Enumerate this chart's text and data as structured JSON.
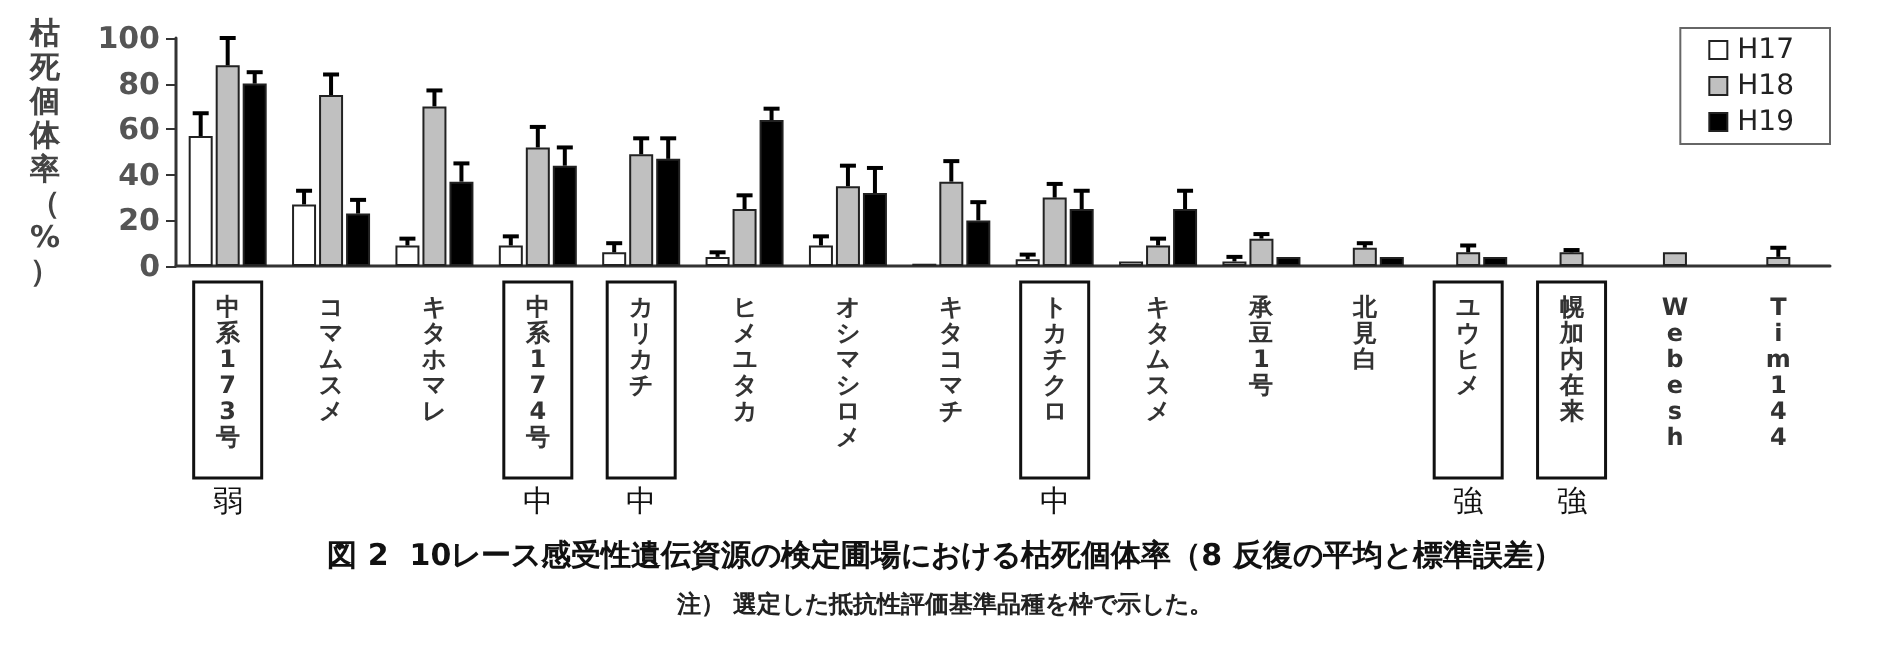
{
  "chart_data": {
    "type": "bar",
    "title": "図 2  10レース感受性遺伝資源の検定圃場における枯死個体率（8 反復の平均と標準誤差）",
    "ylabel": "枯死個体率（%）",
    "categories": [
      "中系173号",
      "コマムスメ",
      "キタホマレ",
      "中系174号",
      "カリカチ",
      "ヒメユタカ",
      "オシマシロメ",
      "キタコマチ",
      "トカチクロ",
      "キタムスメ",
      "承豆1号",
      "北見白",
      "ユウヒメ",
      "幌加内在来",
      "Webesh",
      "Tim144"
    ],
    "series": [
      {
        "name": "H17",
        "color": "#ffffff",
        "values": [
          57,
          27,
          9,
          9,
          6,
          4,
          9,
          1,
          3,
          2,
          2,
          null,
          null,
          null,
          null,
          null
        ],
        "errors": [
          [
            57,
            67
          ],
          [
            27,
            33
          ],
          [
            9,
            12
          ],
          [
            9,
            13
          ],
          [
            6,
            10
          ],
          [
            4,
            6
          ],
          [
            9,
            13
          ],
          null,
          [
            3,
            5
          ],
          null,
          [
            2,
            4
          ],
          null,
          null,
          null,
          null,
          null
        ]
      },
      {
        "name": "H18",
        "color": "#c0c0c0",
        "values": [
          88,
          75,
          70,
          52,
          49,
          25,
          35,
          37,
          30,
          9,
          12,
          8,
          6,
          6,
          6,
          4
        ],
        "errors": [
          [
            88,
            100
          ],
          [
            75,
            84
          ],
          [
            70,
            77
          ],
          [
            52,
            61
          ],
          [
            49,
            56
          ],
          [
            25,
            31
          ],
          [
            35,
            44
          ],
          [
            37,
            46
          ],
          [
            30,
            36
          ],
          [
            9,
            12
          ],
          [
            12,
            14
          ],
          [
            8,
            10
          ],
          [
            6,
            9
          ],
          [
            6,
            7
          ],
          null,
          [
            4,
            8
          ]
        ]
      },
      {
        "name": "H19",
        "color": "#000000",
        "values": [
          80,
          23,
          37,
          44,
          47,
          64,
          32,
          20,
          25,
          25,
          4,
          4,
          4,
          null,
          null,
          null
        ],
        "errors": [
          [
            80,
            85
          ],
          [
            23,
            29
          ],
          [
            37,
            45
          ],
          [
            44,
            52
          ],
          [
            47,
            56
          ],
          [
            64,
            69
          ],
          [
            32,
            43
          ],
          [
            20,
            28
          ],
          [
            25,
            33
          ],
          [
            25,
            33
          ],
          null,
          null,
          null,
          null,
          null,
          null
        ]
      }
    ],
    "ylim": [
      0,
      100
    ],
    "yticks": [
      0,
      20,
      40,
      60,
      80,
      100
    ],
    "grid": false,
    "legend": "top right",
    "annotations": [
      "弱",
      "中",
      "中",
      "中",
      "強",
      "強",
      "注） 選定した抵抗性評価基準品種を枠で示した。"
    ]
  }
}
